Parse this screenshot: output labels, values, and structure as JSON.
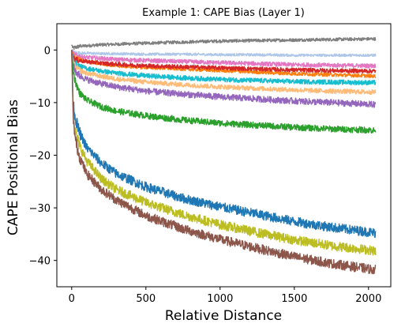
{
  "chart_data": {
    "type": "line",
    "title": "Example 1: CAPE Bias (Layer 1)",
    "xlabel": "Relative Distance",
    "ylabel": "CAPE Positional Bias",
    "xlim": [
      -100,
      2150
    ],
    "ylim": [
      -45,
      5
    ],
    "xticks": [
      0,
      500,
      1000,
      1500,
      2000
    ],
    "yticks": [
      0,
      -10,
      -20,
      -30,
      -40
    ],
    "xtick_labels": [
      "0",
      "500",
      "1000",
      "1500",
      "2000"
    ],
    "ytick_labels": [
      "0",
      "−10",
      "−20",
      "−30",
      "−40"
    ],
    "grid": false,
    "legend": "none",
    "x": [
      0,
      10,
      25,
      50,
      100,
      200,
      300,
      500,
      750,
      1000,
      1250,
      1500,
      1750,
      2000,
      2048
    ],
    "series": [
      {
        "color": "#7f7f7f",
        "noise": 0.3,
        "values": [
          1,
          0.3,
          0.5,
          0.7,
          0.8,
          1.0,
          1.1,
          1.3,
          1.5,
          1.7,
          1.8,
          1.9,
          2.0,
          2.1,
          2.1
        ]
      },
      {
        "color": "#aec7e8",
        "noise": 0.25,
        "values": [
          0,
          -0.4,
          -0.5,
          -0.6,
          -0.6,
          -0.7,
          -0.7,
          -0.8,
          -0.8,
          -0.9,
          -0.9,
          -1.0,
          -1.0,
          -1.0,
          -1.0
        ]
      },
      {
        "color": "#e377c2",
        "noise": 0.4,
        "values": [
          0,
          -0.8,
          -1.0,
          -1.2,
          -1.4,
          -1.6,
          -1.8,
          -2.0,
          -2.2,
          -2.4,
          -2.6,
          -2.8,
          -2.9,
          -3.0,
          -3.0
        ]
      },
      {
        "color": "#ff7f0e",
        "noise": 0.35,
        "values": [
          0,
          -1.2,
          -1.5,
          -1.8,
          -2.2,
          -2.6,
          -3.0,
          -3.3,
          -3.6,
          -3.9,
          -4.2,
          -4.5,
          -4.7,
          -4.9,
          -5.0
        ]
      },
      {
        "color": "#d62728",
        "noise": 0.4,
        "values": [
          0,
          -1.5,
          -1.8,
          -2.0,
          -2.2,
          -2.5,
          -2.7,
          -3.0,
          -3.2,
          -3.4,
          -3.6,
          -3.8,
          -3.9,
          -4.0,
          -4.0
        ]
      },
      {
        "color": "#17becf",
        "noise": 0.45,
        "values": [
          0,
          -2.0,
          -2.6,
          -3.0,
          -3.5,
          -4.0,
          -4.4,
          -4.9,
          -5.3,
          -5.6,
          -5.8,
          -6.0,
          -6.1,
          -6.2,
          -6.2
        ]
      },
      {
        "color": "#ffbb78",
        "noise": 0.45,
        "values": [
          0,
          -2.5,
          -3.2,
          -3.8,
          -4.4,
          -5.0,
          -5.5,
          -6.1,
          -6.6,
          -7.0,
          -7.3,
          -7.6,
          -7.8,
          -8.0,
          -8.0
        ]
      },
      {
        "color": "#9467bd",
        "noise": 0.6,
        "values": [
          0,
          -3.0,
          -4.0,
          -4.8,
          -5.6,
          -6.4,
          -7.0,
          -7.8,
          -8.4,
          -8.9,
          -9.3,
          -9.7,
          -10.0,
          -10.3,
          -10.4
        ]
      },
      {
        "color": "#2ca02c",
        "noise": 0.6,
        "values": [
          0,
          -4.0,
          -6.0,
          -8.0,
          -9.5,
          -10.8,
          -11.6,
          -12.5,
          -13.3,
          -13.9,
          -14.3,
          -14.7,
          -15.0,
          -15.2,
          -15.3
        ]
      },
      {
        "color": "#1f77b4",
        "noise": 0.9,
        "values": [
          0,
          -10,
          -13,
          -15.5,
          -18.5,
          -21.5,
          -23.5,
          -26,
          -28.2,
          -29.8,
          -31.2,
          -32.6,
          -33.7,
          -34.6,
          -34.8
        ]
      },
      {
        "color": "#bcbd22",
        "noise": 0.9,
        "values": [
          0,
          -12,
          -15.5,
          -18,
          -21,
          -24.5,
          -26.5,
          -29,
          -31.3,
          -33.2,
          -34.7,
          -36.1,
          -37.2,
          -38.0,
          -38.2
        ]
      },
      {
        "color": "#8c564b",
        "noise": 0.9,
        "values": [
          0,
          -13,
          -17,
          -20,
          -23.5,
          -26.5,
          -28.5,
          -31.5,
          -34,
          -36,
          -37.7,
          -39.3,
          -40.6,
          -41.6,
          -41.8
        ]
      }
    ]
  }
}
